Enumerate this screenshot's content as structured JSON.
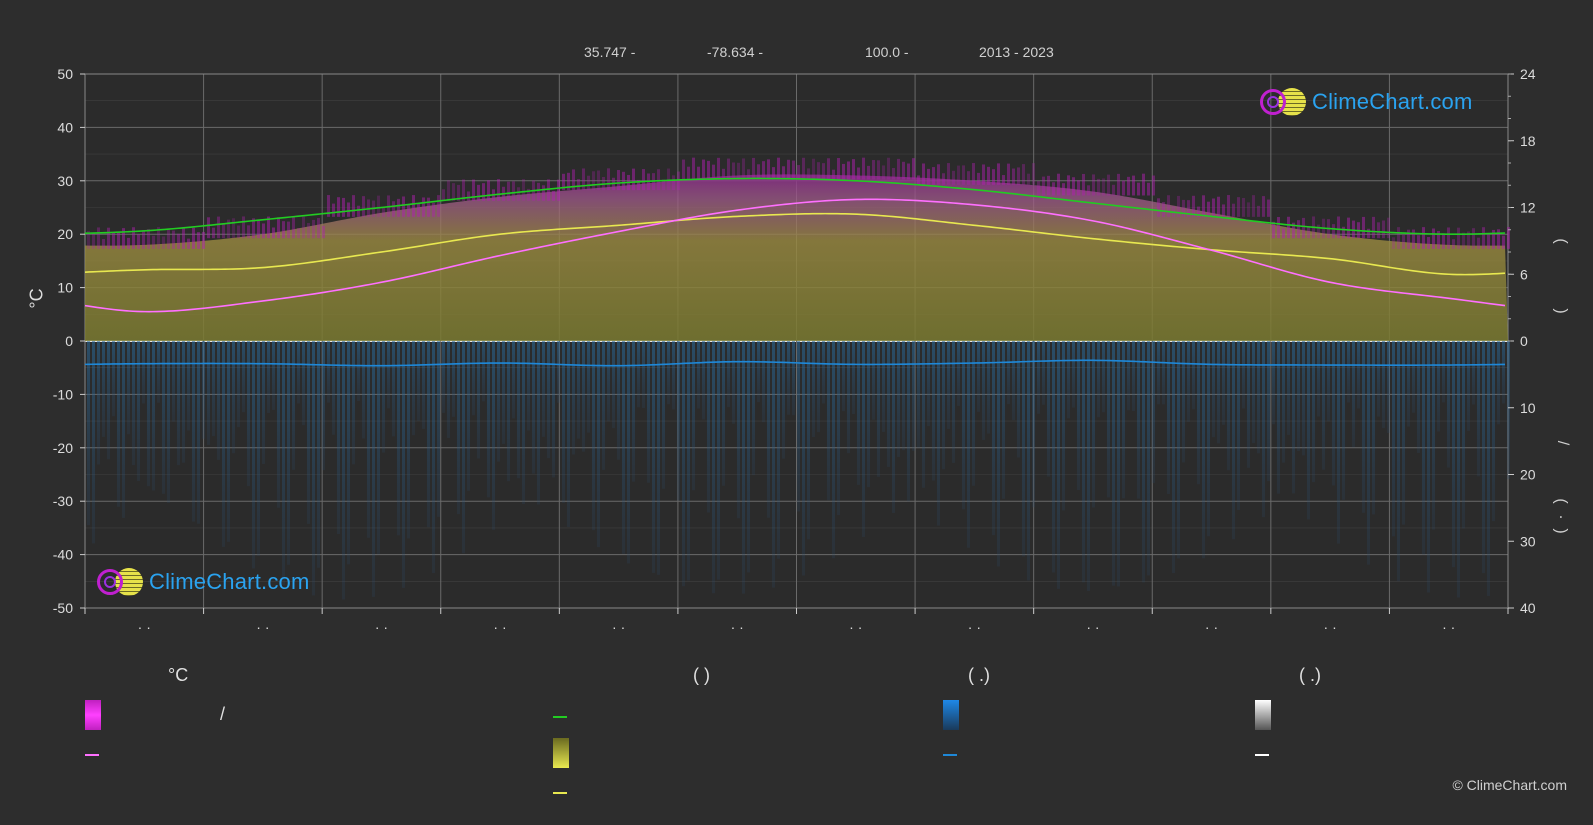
{
  "header": {
    "lat": "35.747 -",
    "lon": "-78.634 -",
    "elev": "100.0 -",
    "years": "2013 - 2023"
  },
  "axes": {
    "left_title": "°C",
    "left_ticks": [
      "50",
      "40",
      "30",
      "20",
      "10",
      "0",
      "-10",
      "-20",
      "-30",
      "-40",
      "-50"
    ],
    "right_top_ticks": [
      "24",
      "18",
      "12",
      "6",
      "0"
    ],
    "right_bottom_ticks": [
      "10",
      "20",
      "30",
      "40"
    ],
    "month_labels": [
      "· ·",
      "· ·",
      "· ·",
      "· ·",
      "· ·",
      "· ·",
      "· ·",
      "· ·",
      "· ·",
      "· ·",
      "· ·",
      "· ·"
    ],
    "right_symbols": [
      "(",
      ")",
      "/",
      "(",
      "·",
      ")"
    ]
  },
  "branding": {
    "logo_text": "ClimeChart.com",
    "copyright": "© ClimeChart.com"
  },
  "legend": {
    "col1_head": "°C",
    "col1_row1_text": "/",
    "col2_head": "(          )",
    "col3_head": "(    .)",
    "col4_head": "(    .)"
  },
  "colors": {
    "background": "#2d2d2d",
    "daylight": "#22cc22",
    "sunshine": "#e8e850",
    "temp_max_band": "#d020d0",
    "temp_mean": "#ff70ff",
    "precip": "#1e88d8",
    "rain_bars": "#3a78b0",
    "snow": "#ffffff"
  },
  "chart_data": {
    "type": "line",
    "x": [
      1,
      2,
      3,
      4,
      5,
      6,
      7,
      8,
      9,
      10,
      11,
      12
    ],
    "left_axis": {
      "label": "°C",
      "ylim": [
        -50,
        50
      ]
    },
    "right_axis_top": {
      "ylim": [
        0,
        24
      ]
    },
    "right_axis_bottom": {
      "ylim": [
        0,
        40
      ]
    },
    "series": [
      {
        "key": "daylight",
        "axis": "right_top",
        "values": [
          9.9,
          10.9,
          12.0,
          13.2,
          14.2,
          14.6,
          14.4,
          13.6,
          12.4,
          11.2,
          10.1,
          9.6
        ]
      },
      {
        "key": "sunshine",
        "axis": "right_top",
        "values": [
          6.4,
          6.6,
          8.0,
          9.6,
          10.4,
          11.2,
          11.4,
          10.4,
          9.2,
          8.2,
          7.4,
          6.0
        ]
      },
      {
        "key": "temp_mean",
        "axis": "left",
        "values": [
          5.5,
          7.5,
          11.0,
          16.0,
          20.5,
          24.5,
          26.5,
          25.5,
          22.5,
          17.0,
          11.0,
          8.0
        ]
      },
      {
        "key": "precip",
        "axis": "right_bottom",
        "values": [
          3.4,
          3.4,
          3.7,
          3.3,
          3.7,
          3.1,
          3.5,
          3.3,
          2.9,
          3.5,
          3.6,
          3.6
        ]
      },
      {
        "key": "temp_max_band",
        "axis": "left",
        "values": [
          18,
          20,
          24,
          27,
          29,
          31,
          31,
          30,
          28,
          24,
          20,
          18
        ]
      }
    ]
  }
}
